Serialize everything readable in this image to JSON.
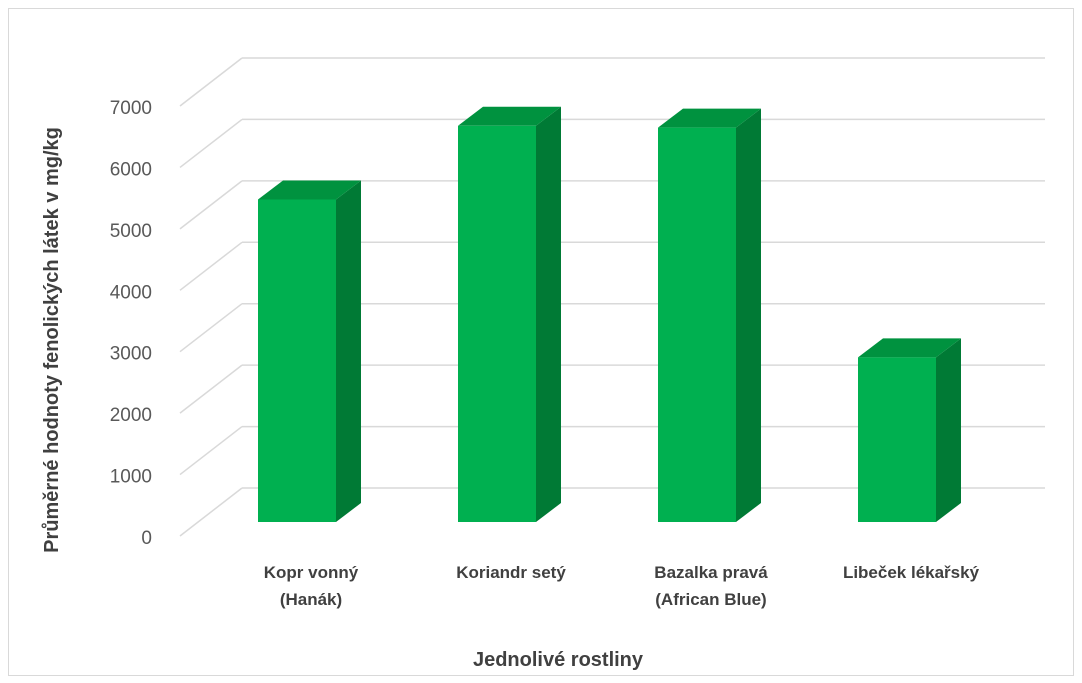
{
  "chart_data": {
    "type": "bar",
    "style": "3d-column",
    "categories": [
      [
        "Kopr vonný",
        "(Hanák)"
      ],
      [
        "Koriandr setý"
      ],
      [
        "Bazalka pravá",
        "(African Blue)"
      ],
      [
        "Libeček lékařský"
      ]
    ],
    "values": [
      5250,
      6450,
      6420,
      2680
    ],
    "xlabel": "Jednolivé rostliny",
    "ylabel": "Průměrné hodnoty fenolických látek v mg/kg",
    "ylim": [
      0,
      7000
    ],
    "yticks": [
      "0",
      "1000",
      "2000",
      "3000",
      "4000",
      "5000",
      "6000",
      "7000"
    ],
    "grid": true,
    "legend": "none",
    "colors": {
      "bar_front": "#00b050",
      "bar_side": "#007a35",
      "bar_top": "#00923f",
      "grid": "#d9d9d9",
      "text": "#595959"
    }
  }
}
